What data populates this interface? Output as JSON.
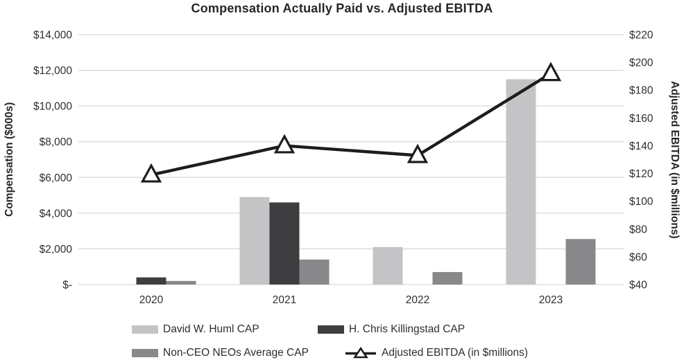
{
  "chart_data": {
    "type": "combo-bar-line",
    "title": "Compensation Actually Paid vs. Adjusted EBITDA",
    "categories": [
      "2020",
      "2021",
      "2022",
      "2023"
    ],
    "bar_series": [
      {
        "name": "David W. Huml CAP",
        "key": "huml",
        "color": "#c4c4c6",
        "values": [
          0,
          4900,
          2100,
          11500
        ]
      },
      {
        "name": "H. Chris Killingstad CAP",
        "key": "killingstad",
        "color": "#3e3e40",
        "values": [
          400,
          4600,
          0,
          0
        ]
      },
      {
        "name": "Non-CEO NEOs Average CAP",
        "key": "nonceo",
        "color": "#88888b",
        "values": [
          200,
          1400,
          700,
          2550
        ]
      }
    ],
    "line_series": {
      "name": "Adjusted EBITDA (in $millions)",
      "color": "#1d1d1d",
      "marker": "triangle-up-hollow",
      "values": [
        119,
        140,
        133,
        192
      ]
    },
    "left_axis": {
      "label": "Compensation ($000s)",
      "min": 0,
      "max": 14000,
      "ticks": [
        "$14,000",
        "$12,000",
        "$10,000",
        "$8,000",
        "$6,000",
        "$4,000",
        "$2,000",
        "$-"
      ]
    },
    "right_axis": {
      "label": "Adjusted EBITDA (in $millions)",
      "min": 40,
      "max": 220,
      "ticks": [
        "$220",
        "$200",
        "$180",
        "$160",
        "$140",
        "$120",
        "$100",
        "$80",
        "$60",
        "$40"
      ]
    },
    "grid": "horizontal",
    "legend_position": "bottom",
    "colors": {
      "gridline": "#d9d9d9",
      "text": "#2e2e2e",
      "marker_fill": "#ffffff"
    }
  }
}
